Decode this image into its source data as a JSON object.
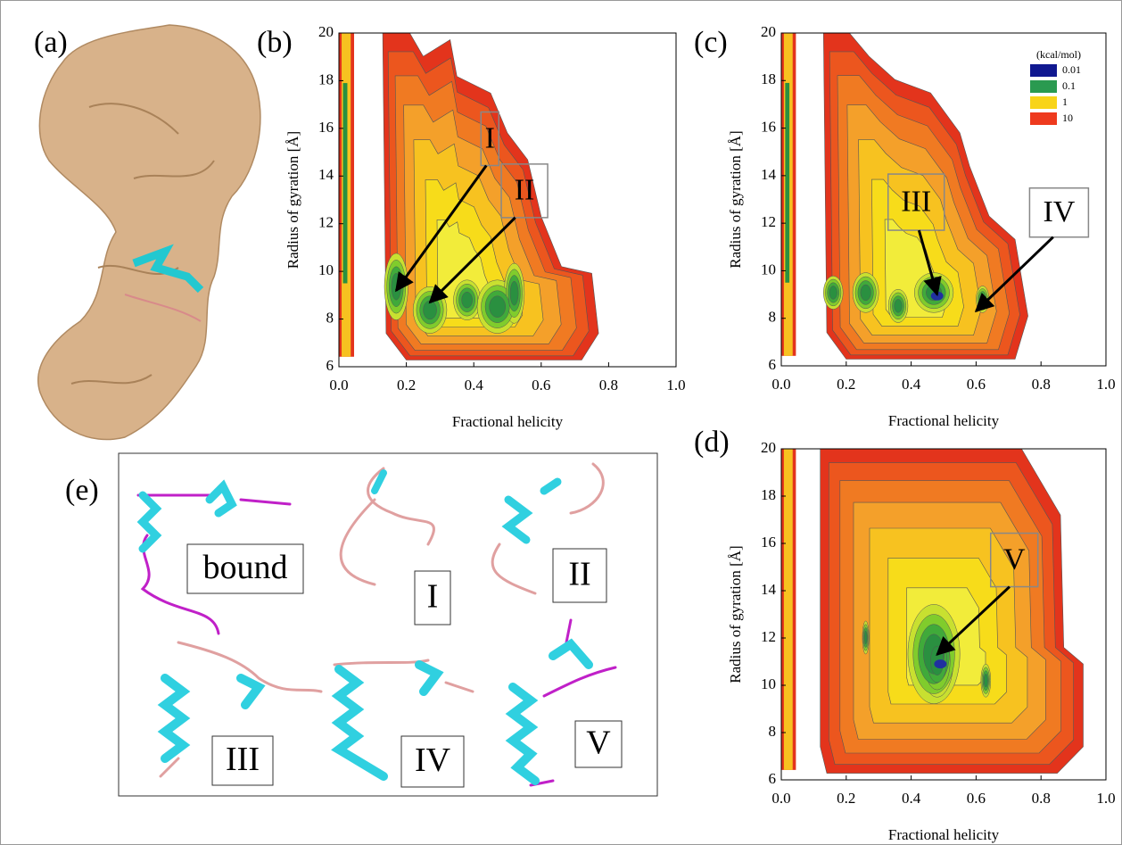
{
  "panel_labels": [
    "(a)",
    "(b)",
    "(c)",
    "(d)",
    "(e)"
  ],
  "chart_data": [
    {
      "type": "contour",
      "panel": "(b)",
      "x_label": "Fractional helicity",
      "y_label": "Radius of gyration [Å]",
      "xlim": [
        0,
        1
      ],
      "ylim": [
        6,
        20
      ],
      "xticks": [
        {
          "value": 0,
          "label": "0.0"
        },
        {
          "value": 0.2,
          "label": "0.2"
        },
        {
          "value": 0.4,
          "label": "0.4"
        },
        {
          "value": 0.6,
          "label": "0.6"
        },
        {
          "value": 0.8,
          "label": "0.8"
        },
        {
          "value": 1,
          "label": "1.0"
        }
      ],
      "yticks": [
        6,
        8,
        10,
        12,
        14,
        16,
        18,
        20
      ],
      "annotations": [
        {
          "text": "I",
          "x": 0.17,
          "y": 9.2
        },
        {
          "text": "II",
          "x": 0.27,
          "y": 8.7
        }
      ]
    },
    {
      "type": "contour",
      "panel": "(c)",
      "x_label": "Fractional helicity",
      "y_label": "Radius of gyration [Å]",
      "xlim": [
        0,
        1
      ],
      "ylim": [
        6,
        20
      ],
      "xticks": [
        {
          "value": 0,
          "label": "0.0"
        },
        {
          "value": 0.2,
          "label": "0.2"
        },
        {
          "value": 0.4,
          "label": "0.4"
        },
        {
          "value": 0.6,
          "label": "0.6"
        },
        {
          "value": 0.8,
          "label": "0.8"
        },
        {
          "value": 1,
          "label": "1.0"
        }
      ],
      "yticks": [
        6,
        8,
        10,
        12,
        14,
        16,
        18,
        20
      ],
      "annotations": [
        {
          "text": "III",
          "x": 0.48,
          "y": 9.0
        },
        {
          "text": "IV",
          "x": 0.6,
          "y": 8.3
        }
      ],
      "legend_title": "(kcal/mol)",
      "levels": [
        0.01,
        0.1,
        1,
        10
      ],
      "level_colors": [
        "#101890",
        "#2a9a50",
        "#f8d418",
        "#ee3a1e"
      ]
    },
    {
      "type": "contour",
      "panel": "(d)",
      "x_label": "Fractional helicity",
      "y_label": "Radius of gyration [Å]",
      "xlim": [
        0,
        1
      ],
      "ylim": [
        6,
        20
      ],
      "xticks": [
        {
          "value": 0,
          "label": "0.0"
        },
        {
          "value": 0.2,
          "label": "0.2"
        },
        {
          "value": 0.4,
          "label": "0.4"
        },
        {
          "value": 0.6,
          "label": "0.6"
        },
        {
          "value": 0.8,
          "label": "0.8"
        },
        {
          "value": 1,
          "label": "1.0"
        }
      ],
      "yticks": [
        6,
        8,
        10,
        12,
        14,
        16,
        18,
        20
      ],
      "annotations": [
        {
          "text": "V",
          "x": 0.48,
          "y": 11.3
        }
      ]
    }
  ],
  "structures": [
    "bound",
    "I",
    "II",
    "III",
    "IV",
    "V"
  ]
}
